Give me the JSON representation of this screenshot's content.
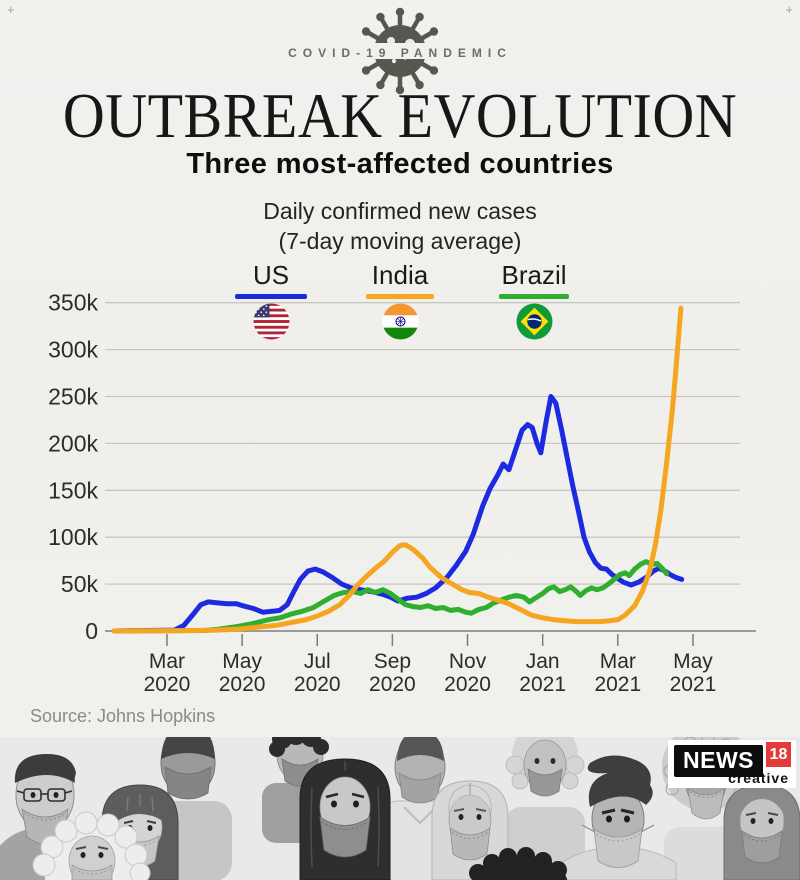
{
  "header": {
    "kicker": "COVID-19 PANDEMIC",
    "title": "OUTBREAK EVOLUTION",
    "subtitle": "Three most-affected countries",
    "measure_line1": "Daily confirmed new cases",
    "measure_line2": "(7-day moving average)"
  },
  "legend": [
    {
      "label": "US",
      "color": "#1c2be0",
      "icon": "us-flag-icon"
    },
    {
      "label": "India",
      "color": "#f6a521",
      "icon": "india-flag-icon"
    },
    {
      "label": "Brazil",
      "color": "#2fae2f",
      "icon": "brazil-flag-icon"
    }
  ],
  "chart_data": {
    "type": "line",
    "title": "Daily confirmed new cases (7-day moving average)",
    "grid": true,
    "legend_position": "top",
    "ylim": [
      0,
      350000
    ],
    "y_unit": "new cases per day (point values in thousands)",
    "x_unit": "months since Feb 2020 (1 = Mar 2020, 15 = May 2021)",
    "y_ticks": [
      [
        "0",
        0
      ],
      [
        "50k",
        50
      ],
      [
        "100k",
        100
      ],
      [
        "150k",
        150
      ],
      [
        "200k",
        200
      ],
      [
        "250k",
        250
      ],
      [
        "300k",
        300
      ],
      [
        "350k",
        350
      ]
    ],
    "x_ticks": [
      [
        "Mar",
        "2020"
      ],
      [
        "May",
        "2020"
      ],
      [
        "Jul",
        "2020"
      ],
      [
        "Sep",
        "2020"
      ],
      [
        "Nov",
        "2020"
      ],
      [
        "Jan",
        "2021"
      ],
      [
        "Mar",
        "2021"
      ],
      [
        "May",
        "2021"
      ]
    ],
    "series": [
      {
        "name": "US",
        "color": "#1c2be0",
        "points": [
          [
            -0.4,
            0
          ],
          [
            1.2,
            1
          ],
          [
            1.45,
            6
          ],
          [
            1.7,
            18
          ],
          [
            1.9,
            28
          ],
          [
            2.1,
            31
          ],
          [
            2.35,
            30
          ],
          [
            2.6,
            29
          ],
          [
            2.85,
            29
          ],
          [
            3.1,
            26
          ],
          [
            3.3,
            24
          ],
          [
            3.55,
            20
          ],
          [
            3.8,
            21
          ],
          [
            4.0,
            22
          ],
          [
            4.2,
            28
          ],
          [
            4.35,
            40
          ],
          [
            4.55,
            55
          ],
          [
            4.75,
            64
          ],
          [
            4.95,
            66
          ],
          [
            5.15,
            63
          ],
          [
            5.4,
            57
          ],
          [
            5.65,
            50
          ],
          [
            5.9,
            46
          ],
          [
            6.15,
            44
          ],
          [
            6.45,
            42
          ],
          [
            6.75,
            39
          ],
          [
            6.95,
            36
          ],
          [
            7.15,
            32
          ],
          [
            7.4,
            35
          ],
          [
            7.65,
            36
          ],
          [
            7.9,
            40
          ],
          [
            8.15,
            46
          ],
          [
            8.45,
            57
          ],
          [
            8.7,
            70
          ],
          [
            8.95,
            85
          ],
          [
            9.15,
            103
          ],
          [
            9.4,
            133
          ],
          [
            9.6,
            152
          ],
          [
            9.8,
            166
          ],
          [
            9.95,
            178
          ],
          [
            10.1,
            172
          ],
          [
            10.3,
            196
          ],
          [
            10.45,
            214
          ],
          [
            10.6,
            220
          ],
          [
            10.72,
            217
          ],
          [
            10.85,
            200
          ],
          [
            10.95,
            190
          ],
          [
            11.1,
            225
          ],
          [
            11.22,
            250
          ],
          [
            11.35,
            243
          ],
          [
            11.5,
            215
          ],
          [
            11.65,
            185
          ],
          [
            11.8,
            155
          ],
          [
            11.95,
            128
          ],
          [
            12.1,
            100
          ],
          [
            12.25,
            84
          ],
          [
            12.4,
            73
          ],
          [
            12.55,
            67
          ],
          [
            12.7,
            66
          ],
          [
            12.85,
            60
          ],
          [
            13.0,
            56
          ],
          [
            13.15,
            52
          ],
          [
            13.35,
            49
          ],
          [
            13.55,
            52
          ],
          [
            13.75,
            57
          ],
          [
            13.95,
            64
          ],
          [
            14.1,
            67
          ],
          [
            14.25,
            64
          ],
          [
            14.4,
            60
          ],
          [
            14.55,
            57
          ],
          [
            14.7,
            55
          ]
        ]
      },
      {
        "name": "Brazil",
        "color": "#2fae2f",
        "points": [
          [
            -0.4,
            0
          ],
          [
            2.0,
            0.5
          ],
          [
            2.4,
            2
          ],
          [
            2.9,
            5
          ],
          [
            3.3,
            8
          ],
          [
            3.7,
            12
          ],
          [
            4.0,
            14
          ],
          [
            4.3,
            18
          ],
          [
            4.6,
            21
          ],
          [
            4.9,
            25
          ],
          [
            5.15,
            31
          ],
          [
            5.45,
            38
          ],
          [
            5.7,
            41
          ],
          [
            5.95,
            42
          ],
          [
            6.15,
            40
          ],
          [
            6.35,
            44
          ],
          [
            6.55,
            41
          ],
          [
            6.75,
            44
          ],
          [
            6.95,
            40
          ],
          [
            7.15,
            34
          ],
          [
            7.35,
            28
          ],
          [
            7.55,
            26
          ],
          [
            7.75,
            25
          ],
          [
            7.95,
            27
          ],
          [
            8.15,
            24
          ],
          [
            8.35,
            25
          ],
          [
            8.55,
            22
          ],
          [
            8.75,
            23
          ],
          [
            8.95,
            20
          ],
          [
            9.1,
            19
          ],
          [
            9.3,
            23
          ],
          [
            9.5,
            25
          ],
          [
            9.7,
            30
          ],
          [
            9.9,
            33
          ],
          [
            10.1,
            36
          ],
          [
            10.3,
            38
          ],
          [
            10.5,
            36
          ],
          [
            10.65,
            31
          ],
          [
            10.8,
            35
          ],
          [
            11.0,
            40
          ],
          [
            11.15,
            45
          ],
          [
            11.3,
            47
          ],
          [
            11.45,
            42
          ],
          [
            11.6,
            44
          ],
          [
            11.75,
            47
          ],
          [
            11.9,
            42
          ],
          [
            12.0,
            38
          ],
          [
            12.15,
            43
          ],
          [
            12.3,
            46
          ],
          [
            12.45,
            44
          ],
          [
            12.6,
            46
          ],
          [
            12.75,
            50
          ],
          [
            12.9,
            55
          ],
          [
            13.05,
            60
          ],
          [
            13.2,
            62
          ],
          [
            13.3,
            59
          ],
          [
            13.45,
            66
          ],
          [
            13.6,
            71
          ],
          [
            13.75,
            74
          ],
          [
            13.9,
            71
          ],
          [
            14.05,
            72
          ],
          [
            14.2,
            66
          ],
          [
            14.3,
            61
          ]
        ]
      },
      {
        "name": "India",
        "color": "#f6a521",
        "points": [
          [
            -0.4,
            0
          ],
          [
            1.6,
            0.4
          ],
          [
            2.3,
            1
          ],
          [
            2.9,
            2
          ],
          [
            3.4,
            4
          ],
          [
            3.9,
            6
          ],
          [
            4.3,
            9
          ],
          [
            4.7,
            12
          ],
          [
            5.0,
            16
          ],
          [
            5.3,
            21
          ],
          [
            5.6,
            28
          ],
          [
            5.85,
            38
          ],
          [
            6.05,
            48
          ],
          [
            6.3,
            58
          ],
          [
            6.55,
            67
          ],
          [
            6.8,
            75
          ],
          [
            7.0,
            84
          ],
          [
            7.2,
            91
          ],
          [
            7.35,
            92
          ],
          [
            7.55,
            87
          ],
          [
            7.8,
            78
          ],
          [
            8.0,
            68
          ],
          [
            8.3,
            57
          ],
          [
            8.6,
            50
          ],
          [
            8.85,
            44
          ],
          [
            9.05,
            41
          ],
          [
            9.3,
            40
          ],
          [
            9.55,
            36
          ],
          [
            9.8,
            33
          ],
          [
            10.1,
            29
          ],
          [
            10.4,
            23
          ],
          [
            10.7,
            17
          ],
          [
            11.0,
            14
          ],
          [
            11.3,
            12
          ],
          [
            11.6,
            11
          ],
          [
            11.9,
            10
          ],
          [
            12.2,
            10
          ],
          [
            12.5,
            10
          ],
          [
            12.8,
            11
          ],
          [
            13.0,
            12
          ],
          [
            13.2,
            17
          ],
          [
            13.45,
            27
          ],
          [
            13.65,
            42
          ],
          [
            13.85,
            64
          ],
          [
            14.0,
            92
          ],
          [
            14.15,
            130
          ],
          [
            14.3,
            180
          ],
          [
            14.45,
            235
          ],
          [
            14.55,
            280
          ],
          [
            14.68,
            344
          ]
        ]
      }
    ]
  },
  "footer": {
    "source": "Source: Johns Hopkins"
  },
  "logo": {
    "news": "NEWS",
    "num": "18",
    "creative": "creative"
  },
  "icons": {
    "header_icon": "virus-icon",
    "legend_icons": [
      "us-flag-icon",
      "india-flag-icon",
      "brazil-flag-icon"
    ],
    "footer_art": "masked-crowd-illustration"
  }
}
